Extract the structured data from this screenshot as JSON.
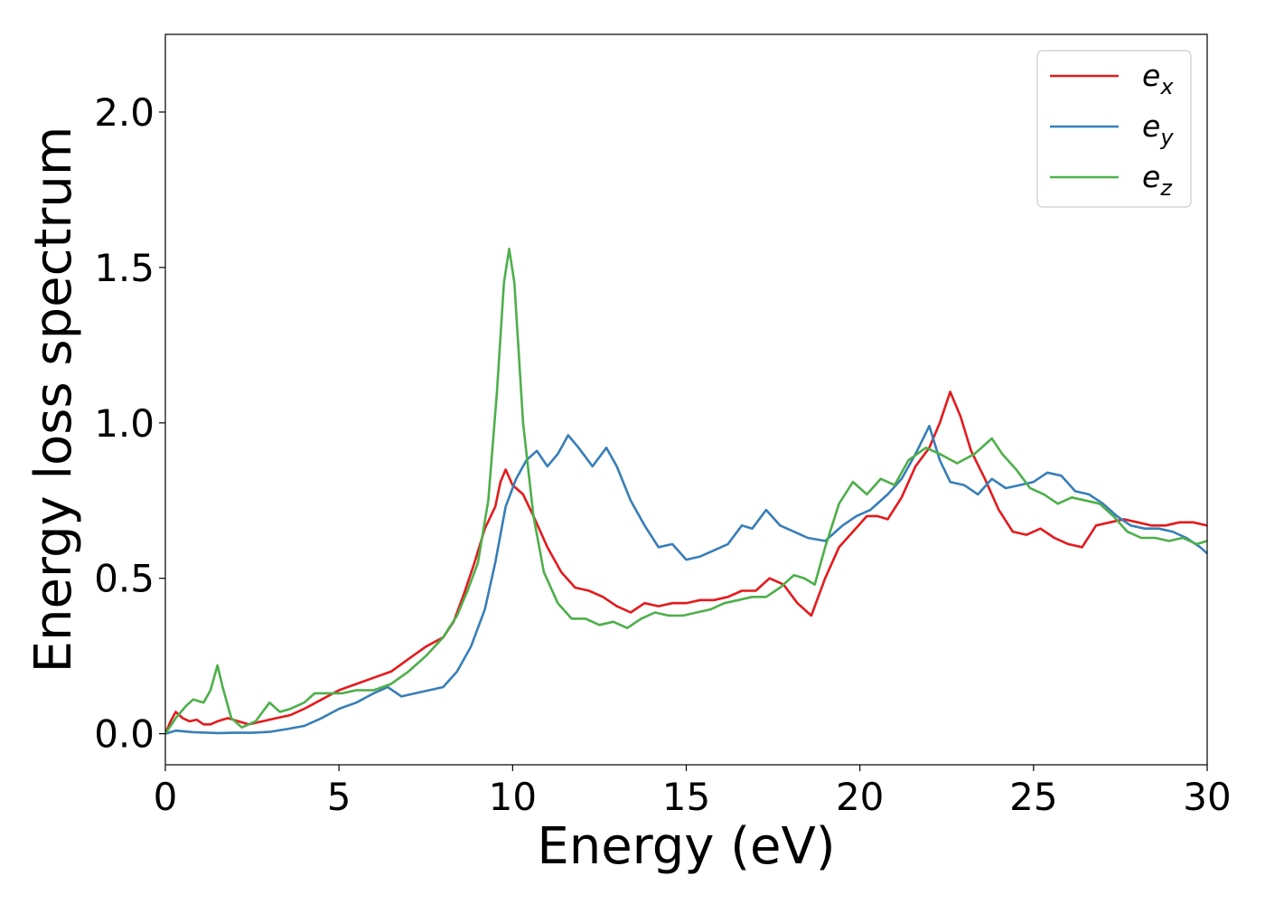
{
  "chart_data": {
    "type": "line",
    "title": "",
    "xlabel": "Energy (eV)",
    "ylabel": "Energy loss spectrum",
    "xlim": [
      0,
      30
    ],
    "ylim": [
      -0.1,
      2.25
    ],
    "xticks": [
      "0",
      "5",
      "10",
      "15",
      "20",
      "25",
      "30"
    ],
    "yticks": [
      "0.0",
      "0.5",
      "1.0",
      "1.5",
      "2.0"
    ],
    "grid": false,
    "legend_position": "top-right",
    "series": [
      {
        "name_main": "e",
        "name_sub": "x",
        "color": "#e41a1c",
        "points": [
          [
            0,
            0
          ],
          [
            0.15,
            0.04
          ],
          [
            0.3,
            0.07
          ],
          [
            0.5,
            0.05
          ],
          [
            0.7,
            0.04
          ],
          [
            0.9,
            0.045
          ],
          [
            1.1,
            0.03
          ],
          [
            1.3,
            0.03
          ],
          [
            1.5,
            0.04
          ],
          [
            1.8,
            0.05
          ],
          [
            2.1,
            0.04
          ],
          [
            2.4,
            0.03
          ],
          [
            2.8,
            0.04
          ],
          [
            3.2,
            0.05
          ],
          [
            3.6,
            0.06
          ],
          [
            4.0,
            0.08
          ],
          [
            4.5,
            0.11
          ],
          [
            5.0,
            0.14
          ],
          [
            5.5,
            0.16
          ],
          [
            6.0,
            0.18
          ],
          [
            6.5,
            0.2
          ],
          [
            7.0,
            0.24
          ],
          [
            7.5,
            0.28
          ],
          [
            8.0,
            0.31
          ],
          [
            8.3,
            0.36
          ],
          [
            8.6,
            0.45
          ],
          [
            8.9,
            0.55
          ],
          [
            9.2,
            0.66
          ],
          [
            9.5,
            0.73
          ],
          [
            9.65,
            0.81
          ],
          [
            9.8,
            0.85
          ],
          [
            10.0,
            0.8
          ],
          [
            10.3,
            0.77
          ],
          [
            10.6,
            0.7
          ],
          [
            11.0,
            0.6
          ],
          [
            11.4,
            0.52
          ],
          [
            11.8,
            0.47
          ],
          [
            12.2,
            0.46
          ],
          [
            12.6,
            0.44
          ],
          [
            13.0,
            0.41
          ],
          [
            13.4,
            0.39
          ],
          [
            13.8,
            0.42
          ],
          [
            14.2,
            0.41
          ],
          [
            14.6,
            0.42
          ],
          [
            15.0,
            0.42
          ],
          [
            15.4,
            0.43
          ],
          [
            15.8,
            0.43
          ],
          [
            16.2,
            0.44
          ],
          [
            16.6,
            0.46
          ],
          [
            17.0,
            0.46
          ],
          [
            17.4,
            0.5
          ],
          [
            17.8,
            0.48
          ],
          [
            18.2,
            0.42
          ],
          [
            18.6,
            0.38
          ],
          [
            19.0,
            0.5
          ],
          [
            19.4,
            0.6
          ],
          [
            19.8,
            0.65
          ],
          [
            20.2,
            0.7
          ],
          [
            20.5,
            0.7
          ],
          [
            20.8,
            0.69
          ],
          [
            21.2,
            0.76
          ],
          [
            21.6,
            0.86
          ],
          [
            22.0,
            0.92
          ],
          [
            22.3,
            1.0
          ],
          [
            22.6,
            1.1
          ],
          [
            22.9,
            1.02
          ],
          [
            23.2,
            0.91
          ],
          [
            23.6,
            0.82
          ],
          [
            24.0,
            0.72
          ],
          [
            24.4,
            0.65
          ],
          [
            24.8,
            0.64
          ],
          [
            25.2,
            0.66
          ],
          [
            25.6,
            0.63
          ],
          [
            26.0,
            0.61
          ],
          [
            26.4,
            0.6
          ],
          [
            26.8,
            0.67
          ],
          [
            27.2,
            0.68
          ],
          [
            27.6,
            0.69
          ],
          [
            28.0,
            0.68
          ],
          [
            28.4,
            0.67
          ],
          [
            28.8,
            0.67
          ],
          [
            29.2,
            0.68
          ],
          [
            29.6,
            0.68
          ],
          [
            30.0,
            0.67
          ]
        ]
      },
      {
        "name_main": "e",
        "name_sub": "y",
        "color": "#377eb8",
        "points": [
          [
            0,
            0
          ],
          [
            0.3,
            0.01
          ],
          [
            0.8,
            0.005
          ],
          [
            1.5,
            0.002
          ],
          [
            2.0,
            0.003
          ],
          [
            2.5,
            0.003
          ],
          [
            3.0,
            0.006
          ],
          [
            3.5,
            0.015
          ],
          [
            4.0,
            0.025
          ],
          [
            4.5,
            0.05
          ],
          [
            5.0,
            0.08
          ],
          [
            5.5,
            0.1
          ],
          [
            6.0,
            0.13
          ],
          [
            6.4,
            0.15
          ],
          [
            6.8,
            0.12
          ],
          [
            7.2,
            0.13
          ],
          [
            7.6,
            0.14
          ],
          [
            8.0,
            0.15
          ],
          [
            8.4,
            0.2
          ],
          [
            8.8,
            0.28
          ],
          [
            9.2,
            0.4
          ],
          [
            9.5,
            0.55
          ],
          [
            9.8,
            0.73
          ],
          [
            10.1,
            0.82
          ],
          [
            10.4,
            0.88
          ],
          [
            10.7,
            0.91
          ],
          [
            11.0,
            0.86
          ],
          [
            11.3,
            0.9
          ],
          [
            11.6,
            0.96
          ],
          [
            11.9,
            0.92
          ],
          [
            12.3,
            0.86
          ],
          [
            12.7,
            0.92
          ],
          [
            13.0,
            0.86
          ],
          [
            13.4,
            0.75
          ],
          [
            13.8,
            0.67
          ],
          [
            14.2,
            0.6
          ],
          [
            14.6,
            0.61
          ],
          [
            15.0,
            0.56
          ],
          [
            15.4,
            0.57
          ],
          [
            15.8,
            0.59
          ],
          [
            16.2,
            0.61
          ],
          [
            16.6,
            0.67
          ],
          [
            16.9,
            0.66
          ],
          [
            17.3,
            0.72
          ],
          [
            17.7,
            0.67
          ],
          [
            18.1,
            0.65
          ],
          [
            18.5,
            0.63
          ],
          [
            19.0,
            0.62
          ],
          [
            19.5,
            0.67
          ],
          [
            19.9,
            0.7
          ],
          [
            20.3,
            0.72
          ],
          [
            20.8,
            0.77
          ],
          [
            21.2,
            0.82
          ],
          [
            21.6,
            0.9
          ],
          [
            22.0,
            0.99
          ],
          [
            22.3,
            0.88
          ],
          [
            22.6,
            0.81
          ],
          [
            23.0,
            0.8
          ],
          [
            23.4,
            0.77
          ],
          [
            23.8,
            0.82
          ],
          [
            24.2,
            0.79
          ],
          [
            24.6,
            0.8
          ],
          [
            25.0,
            0.81
          ],
          [
            25.4,
            0.84
          ],
          [
            25.8,
            0.83
          ],
          [
            26.2,
            0.78
          ],
          [
            26.6,
            0.77
          ],
          [
            27.0,
            0.74
          ],
          [
            27.4,
            0.7
          ],
          [
            27.8,
            0.67
          ],
          [
            28.2,
            0.66
          ],
          [
            28.6,
            0.66
          ],
          [
            29.0,
            0.65
          ],
          [
            29.4,
            0.63
          ],
          [
            29.8,
            0.6
          ],
          [
            30.0,
            0.58
          ]
        ]
      },
      {
        "name_main": "e",
        "name_sub": "z",
        "color": "#4daf4a",
        "points": [
          [
            0,
            0
          ],
          [
            0.3,
            0.05
          ],
          [
            0.6,
            0.09
          ],
          [
            0.8,
            0.11
          ],
          [
            1.1,
            0.1
          ],
          [
            1.3,
            0.14
          ],
          [
            1.5,
            0.22
          ],
          [
            1.65,
            0.15
          ],
          [
            1.9,
            0.05
          ],
          [
            2.2,
            0.02
          ],
          [
            2.6,
            0.04
          ],
          [
            3.0,
            0.1
          ],
          [
            3.3,
            0.07
          ],
          [
            3.6,
            0.08
          ],
          [
            4.0,
            0.1
          ],
          [
            4.3,
            0.13
          ],
          [
            4.7,
            0.13
          ],
          [
            5.1,
            0.13
          ],
          [
            5.5,
            0.14
          ],
          [
            6.0,
            0.14
          ],
          [
            6.5,
            0.16
          ],
          [
            7.0,
            0.2
          ],
          [
            7.5,
            0.25
          ],
          [
            8.0,
            0.31
          ],
          [
            8.4,
            0.38
          ],
          [
            8.7,
            0.46
          ],
          [
            9.0,
            0.55
          ],
          [
            9.3,
            0.75
          ],
          [
            9.55,
            1.1
          ],
          [
            9.75,
            1.45
          ],
          [
            9.9,
            1.56
          ],
          [
            10.05,
            1.45
          ],
          [
            10.3,
            1.0
          ],
          [
            10.6,
            0.7
          ],
          [
            10.9,
            0.52
          ],
          [
            11.3,
            0.42
          ],
          [
            11.7,
            0.37
          ],
          [
            12.1,
            0.37
          ],
          [
            12.5,
            0.35
          ],
          [
            12.9,
            0.36
          ],
          [
            13.3,
            0.34
          ],
          [
            13.7,
            0.37
          ],
          [
            14.1,
            0.39
          ],
          [
            14.5,
            0.38
          ],
          [
            14.9,
            0.38
          ],
          [
            15.3,
            0.39
          ],
          [
            15.7,
            0.4
          ],
          [
            16.1,
            0.42
          ],
          [
            16.5,
            0.43
          ],
          [
            16.9,
            0.44
          ],
          [
            17.3,
            0.44
          ],
          [
            17.7,
            0.47
          ],
          [
            18.1,
            0.51
          ],
          [
            18.4,
            0.5
          ],
          [
            18.7,
            0.48
          ],
          [
            19.0,
            0.6
          ],
          [
            19.4,
            0.74
          ],
          [
            19.8,
            0.81
          ],
          [
            20.2,
            0.77
          ],
          [
            20.6,
            0.82
          ],
          [
            21.0,
            0.8
          ],
          [
            21.4,
            0.88
          ],
          [
            21.9,
            0.92
          ],
          [
            22.3,
            0.9
          ],
          [
            22.8,
            0.87
          ],
          [
            23.3,
            0.9
          ],
          [
            23.8,
            0.95
          ],
          [
            24.1,
            0.9
          ],
          [
            24.5,
            0.85
          ],
          [
            24.9,
            0.79
          ],
          [
            25.3,
            0.77
          ],
          [
            25.7,
            0.74
          ],
          [
            26.1,
            0.76
          ],
          [
            26.5,
            0.75
          ],
          [
            26.9,
            0.74
          ],
          [
            27.3,
            0.7
          ],
          [
            27.7,
            0.65
          ],
          [
            28.1,
            0.63
          ],
          [
            28.5,
            0.63
          ],
          [
            28.9,
            0.62
          ],
          [
            29.3,
            0.63
          ],
          [
            29.7,
            0.61
          ],
          [
            30.0,
            0.62
          ]
        ]
      }
    ]
  }
}
